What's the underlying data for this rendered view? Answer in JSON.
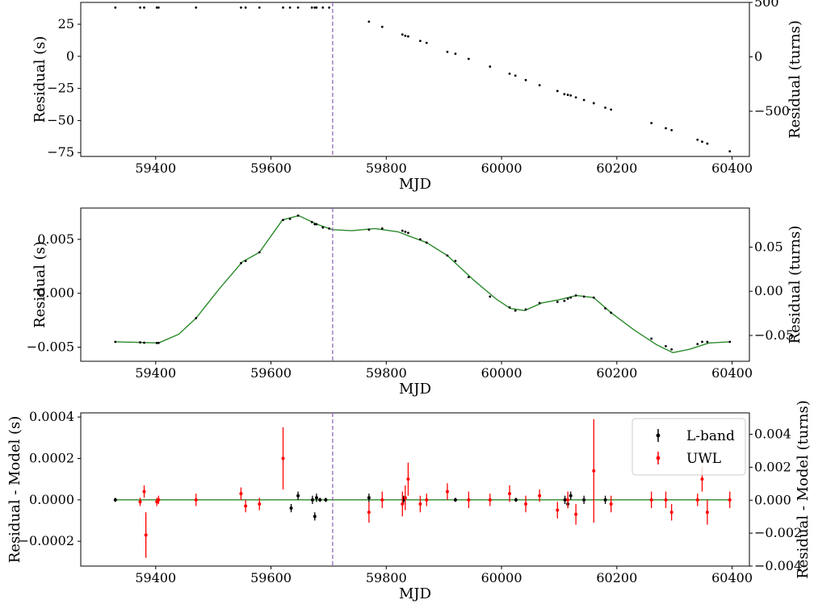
{
  "chart_data": [
    {
      "type": "scatter",
      "panel": "top",
      "xlabel": "MJD",
      "ylabel": "Residual (s)",
      "ylabel_right": "Residual (turns)",
      "xlim": [
        59270,
        60430
      ],
      "ylim": [
        -78,
        42
      ],
      "ylim_right": [
        -915,
        500
      ],
      "xticks": [
        59400,
        59600,
        59800,
        60000,
        60200,
        60400
      ],
      "yticks": [
        25,
        0,
        -25,
        -50,
        -75
      ],
      "yticks_right": [
        500,
        0,
        -500
      ],
      "marker_color": "#000000",
      "vline_mjd": 59707,
      "vline_color": "#9467bd",
      "points": {
        "x": [
          59330,
          59373,
          59380,
          59402,
          59405,
          59470,
          59548,
          59556,
          59580,
          59621,
          59633,
          59647,
          59671,
          59676,
          59679,
          59690,
          59701,
          59770,
          59793,
          59828,
          59833,
          59838,
          59859,
          59870,
          59906,
          59920,
          59943,
          59980,
          60014,
          60024,
          60042,
          60066,
          60097,
          60109,
          60115,
          60120,
          60129,
          60143,
          60160,
          60180,
          60190,
          60260,
          60285,
          60295,
          60340,
          60348,
          60357,
          60396
        ],
        "y": [
          38,
          38,
          38,
          38,
          38,
          38,
          38,
          38,
          38,
          38,
          38,
          38,
          38,
          38,
          38,
          38,
          38,
          27,
          23,
          17,
          16,
          15.5,
          12,
          10.5,
          3.5,
          2,
          -2,
          -8,
          -13.5,
          -15,
          -18.5,
          -22.5,
          -27,
          -29.5,
          -30,
          -30.5,
          -32,
          -34,
          -36.5,
          -40,
          -41.5,
          -52,
          -56,
          -57.5,
          -65,
          -66.5,
          -68,
          -74
        ]
      }
    },
    {
      "type": "line",
      "panel": "middle",
      "xlabel": "MJD",
      "ylabel": "Residual (s)",
      "ylabel_right": "Residual (turns)",
      "xlim": [
        59270,
        60430
      ],
      "ylim": [
        -0.0063,
        0.0079
      ],
      "ylim_right": [
        -0.0792,
        0.0942
      ],
      "xticks": [
        59400,
        59600,
        59800,
        60000,
        60200,
        60400
      ],
      "yticks": [
        0.005,
        0.0,
        -0.005
      ],
      "yticks_right": [
        0.05,
        0.0,
        -0.05
      ],
      "yticklabels": [
        "0.005",
        "0.000",
        "−0.005"
      ],
      "yticklabels_right": [
        "0.05",
        "0.00",
        "−0.05"
      ],
      "line_color": "#2a8a2a",
      "marker_color": "#000000",
      "vline_mjd": 59707,
      "vline_color": "#9467bd",
      "model": {
        "x": [
          59330,
          59370,
          59405,
          59440,
          59470,
          59510,
          59550,
          59580,
          59620,
          59648,
          59680,
          59707,
          59740,
          59780,
          59820,
          59840,
          59870,
          59906,
          59950,
          59990,
          60015,
          60040,
          60070,
          60100,
          60130,
          60160,
          60190,
          60230,
          60270,
          60297,
          60325,
          60360,
          60396
        ],
        "y": [
          -0.0045,
          -0.00455,
          -0.0046,
          -0.0038,
          -0.0023,
          0.0004,
          0.0029,
          0.0038,
          0.0068,
          0.0072,
          0.0064,
          0.0059,
          0.0058,
          0.006,
          0.0057,
          0.0053,
          0.0047,
          0.0035,
          0.0013,
          -0.0005,
          -0.0014,
          -0.0016,
          -0.0009,
          -0.0006,
          -0.0002,
          -0.0004,
          -0.0018,
          -0.0034,
          -0.0048,
          -0.0055,
          -0.0052,
          -0.0046,
          -0.0045
        ]
      },
      "points": {
        "x": [
          59330,
          59373,
          59380,
          59402,
          59405,
          59470,
          59548,
          59556,
          59580,
          59621,
          59633,
          59647,
          59671,
          59676,
          59679,
          59690,
          59701,
          59770,
          59793,
          59828,
          59833,
          59838,
          59859,
          59870,
          59906,
          59920,
          59943,
          59980,
          60014,
          60024,
          60042,
          60066,
          60097,
          60109,
          60115,
          60120,
          60129,
          60143,
          60160,
          60180,
          60190,
          60260,
          60285,
          60295,
          60340,
          60348,
          60357,
          60396
        ],
        "y": [
          -0.0045,
          -0.00455,
          -0.00458,
          -0.0046,
          -0.0046,
          -0.0023,
          0.0028,
          0.003,
          0.0038,
          0.0068,
          0.0069,
          0.0072,
          0.0066,
          0.0064,
          0.0064,
          0.0061,
          0.006,
          0.0059,
          0.006,
          0.0058,
          0.0057,
          0.0056,
          0.005,
          0.0047,
          0.0035,
          0.003,
          0.0015,
          -0.0003,
          -0.0013,
          -0.0016,
          -0.0015,
          -0.0009,
          -0.0008,
          -0.0007,
          -0.0005,
          -0.0004,
          -0.0002,
          -0.0003,
          -0.0004,
          -0.0014,
          -0.0018,
          -0.0042,
          -0.0049,
          -0.0052,
          -0.0047,
          -0.0045,
          -0.0045,
          -0.0045
        ]
      }
    },
    {
      "type": "scatter",
      "panel": "bottom",
      "xlabel": "MJD",
      "ylabel": "Residual - Model (s)",
      "ylabel_right": "Residual - Model (turns)",
      "xlim": [
        59270,
        60430
      ],
      "ylim": [
        -0.00032,
        0.00042
      ],
      "ylim_right": [
        -0.004,
        0.0053
      ],
      "xticks": [
        59400,
        59600,
        59800,
        60000,
        60200,
        60400
      ],
      "yticks": [
        0.0004,
        0.0002,
        0.0,
        -0.0002
      ],
      "yticks_right": [
        0.004,
        0.002,
        0.0,
        -0.002,
        -0.004
      ],
      "yticklabels": [
        "0.0004",
        "0.0002",
        "0.0000",
        "−0.0002"
      ],
      "yticklabels_right": [
        "0.004",
        "0.002",
        "0.000",
        "−0.002",
        "−0.004"
      ],
      "zero_line_color": "#2a8a2a",
      "vline_mjd": 59707,
      "vline_color": "#9467bd",
      "legend_position": "top-right",
      "series": [
        {
          "name": "L-band",
          "color": "#000000",
          "x": [
            59330,
            59635,
            59647,
            59672,
            59676,
            59679,
            59685,
            59695,
            59770,
            59830,
            59920,
            60025,
            60110,
            60115,
            60120,
            60143,
            60180
          ],
          "y": [
            0.0,
            -4e-05,
            2e-05,
            0.0,
            -8e-05,
            1e-05,
            0.0,
            0.0,
            1e-05,
            0.0,
            0.0,
            0.0,
            0.0,
            -2e-05,
            2e-05,
            0.0,
            0.0
          ],
          "err": [
            1e-05,
            2e-05,
            2e-05,
            2e-05,
            2e-05,
            2e-05,
            1e-05,
            1e-05,
            2e-05,
            2e-05,
            1e-05,
            1e-05,
            2e-05,
            2e-05,
            2e-05,
            2e-05,
            2e-05
          ]
        },
        {
          "name": "UWL",
          "color": "#ff0000",
          "x": [
            59373,
            59380,
            59383,
            59402,
            59405,
            59470,
            59548,
            59556,
            59580,
            59621,
            59770,
            59793,
            59828,
            59833,
            59838,
            59859,
            59870,
            59906,
            59943,
            59980,
            60014,
            60042,
            60066,
            60097,
            60115,
            60129,
            60160,
            60190,
            60260,
            60285,
            60295,
            60340,
            60348,
            60357,
            60396
          ],
          "y": [
            -1e-05,
            4e-05,
            -0.00017,
            -1e-05,
            0.0,
            0.0,
            3e-05,
            -3e-05,
            -2e-05,
            0.0002,
            -6e-05,
            0.0,
            -2e-05,
            1e-05,
            0.0001,
            -2e-05,
            0.0,
            4e-05,
            0.0,
            0.0,
            3e-05,
            -2e-05,
            2e-05,
            -5e-05,
            0.0,
            -7e-05,
            0.00014,
            -2e-05,
            0.0,
            0.0,
            -6e-05,
            0.0,
            0.0001,
            -6e-05,
            0.0
          ],
          "err": [
            2e-05,
            3e-05,
            0.00011,
            2e-05,
            2e-05,
            3e-05,
            3e-05,
            3e-05,
            3e-05,
            0.00015,
            5e-05,
            4e-05,
            6e-05,
            6e-05,
            8e-05,
            4e-05,
            3e-05,
            4e-05,
            4e-05,
            3e-05,
            4e-05,
            4e-05,
            3e-05,
            4e-05,
            4e-05,
            5e-05,
            0.00025,
            4e-05,
            4e-05,
            4e-05,
            4e-05,
            3e-05,
            6e-05,
            6e-05,
            4e-05
          ]
        }
      ]
    }
  ]
}
